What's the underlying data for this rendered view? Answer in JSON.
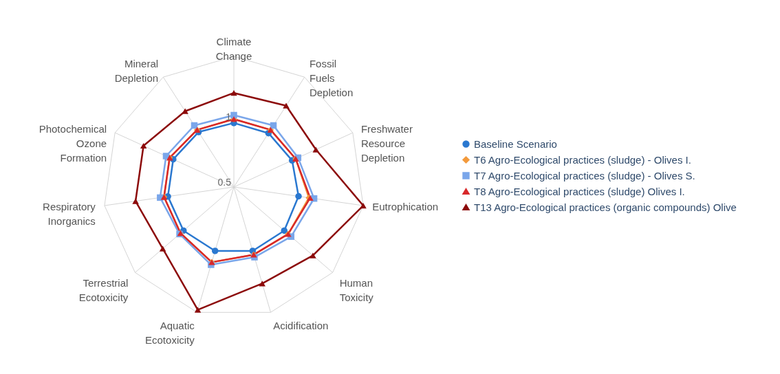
{
  "chart_data": {
    "type": "radar",
    "categories": [
      "Climate Change",
      "Fossil Fuels Depletion",
      "Freshwater Resource Depletion",
      "Eutrophication",
      "Human Toxicity",
      "Acidification",
      "Aquatic Ecotoxicity",
      "Terrestrial Ecotoxicity",
      "Respiratory Inorganics",
      "Photochemical Ozone Formation",
      "Mineral Depletion"
    ],
    "series": [
      {
        "name": "Baseline Scenario",
        "color": "#2a78d0",
        "marker": "circle",
        "values": [
          0.99,
          0.99,
          0.99,
          1.0,
          1.01,
          1.01,
          1.01,
          1.01,
          1.01,
          1.01,
          1.0
        ]
      },
      {
        "name": "T6 Agro-Ecological practices (sludge) - Olives I.",
        "color": "#f39a3c",
        "marker": "diamond",
        "values": [
          1.02,
          1.02,
          1.02,
          1.08,
          1.05,
          1.04,
          1.1,
          1.04,
          1.04,
          1.04,
          1.02
        ]
      },
      {
        "name": "T7 Agro-Ecological practices (sludge) - Olives S.",
        "color": "#7aa6ea",
        "marker": "square",
        "values": [
          1.05,
          1.06,
          1.04,
          1.12,
          1.08,
          1.06,
          1.12,
          1.05,
          1.07,
          1.07,
          1.06
        ]
      },
      {
        "name": "T8 Agro-Ecological practices (sludge) Olives I.",
        "color": "#d8282a",
        "marker": "triangle",
        "values": [
          1.02,
          1.02,
          1.02,
          1.09,
          1.05,
          1.04,
          1.1,
          1.04,
          1.04,
          1.04,
          1.02
        ]
      },
      {
        "name": "T13 Agro-Ecological practices (organic compounds) Olive",
        "color": "#8c0a0a",
        "marker": "triangle",
        "values": [
          1.22,
          1.24,
          1.19,
          1.5,
          1.3,
          1.27,
          1.48,
          1.22,
          1.26,
          1.26,
          1.19
        ]
      }
    ],
    "ylim": [
      0.5,
      1.5
    ],
    "yticks": [
      0.5,
      1
    ],
    "grid": true,
    "legend": "right"
  }
}
